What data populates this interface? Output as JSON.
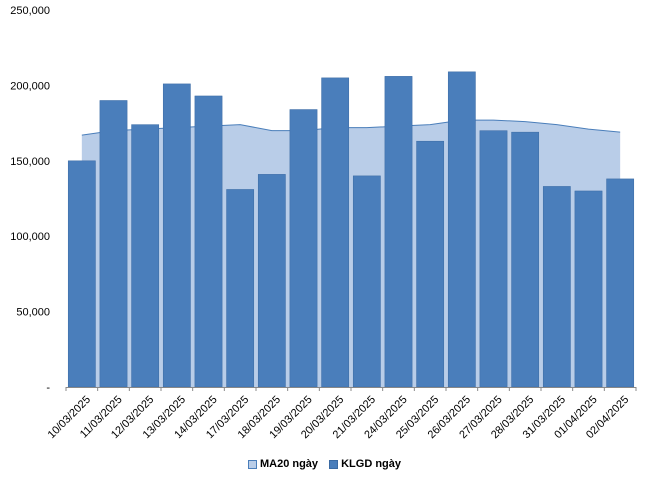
{
  "chart_data": {
    "type": "bar",
    "categories": [
      "10/03/2025",
      "11/03/2025",
      "12/03/2025",
      "13/03/2025",
      "14/03/2025",
      "17/03/2025",
      "18/03/2025",
      "19/03/2025",
      "20/03/2025",
      "21/03/2025",
      "24/03/2025",
      "25/03/2025",
      "26/03/2025",
      "27/03/2025",
      "28/03/2025",
      "31/03/2025",
      "01/04/2025",
      "02/04/2025"
    ],
    "series": [
      {
        "name": "MA20 ngày",
        "kind": "area",
        "values": [
          167000,
          170000,
          171000,
          172000,
          173000,
          174000,
          170000,
          170000,
          172000,
          172000,
          173000,
          174000,
          177000,
          177000,
          176000,
          174000,
          171000,
          169000
        ]
      },
      {
        "name": "KLGD ngày",
        "kind": "bar",
        "values": [
          150000,
          190000,
          174000,
          201000,
          193000,
          131000,
          141000,
          184000,
          205000,
          140000,
          206000,
          163000,
          209000,
          170000,
          169000,
          133000,
          130000,
          138000
        ]
      }
    ],
    "ylim": [
      0,
      250000
    ],
    "yticks": [
      {
        "value": 0,
        "label": "-"
      },
      {
        "value": 50000,
        "label": "50,000"
      },
      {
        "value": 100000,
        "label": "100,000"
      },
      {
        "value": 150000,
        "label": "150,000"
      },
      {
        "value": 200000,
        "label": "200,000"
      },
      {
        "value": 250000,
        "label": "250,000"
      }
    ],
    "legend_position": "bottom",
    "grid": false,
    "colors": {
      "area_fill": "#b9cde8",
      "area_line": "#4a7eba",
      "bar": "#4a7ebb",
      "bar_edge": "#3a6aa3",
      "axis": "#888888"
    }
  }
}
